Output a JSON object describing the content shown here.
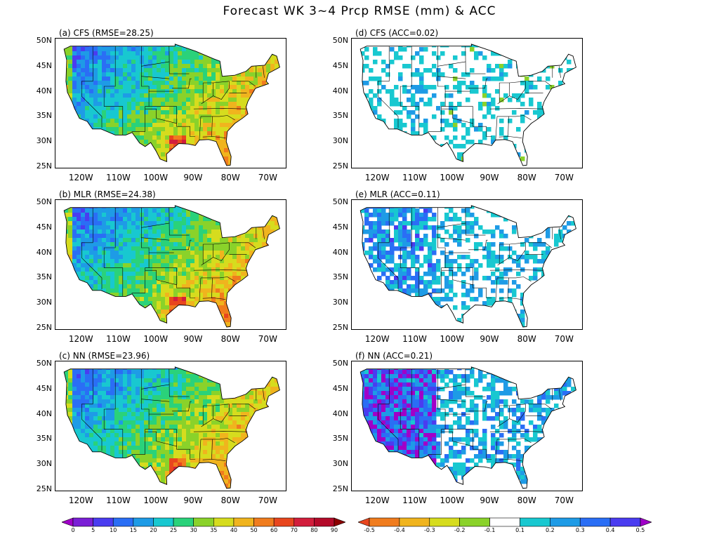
{
  "title": "Forecast WK 3~4 Prcp RMSE (mm) & ACC",
  "y_axis_labels": [
    "50N",
    "45N",
    "40N",
    "35N",
    "30N",
    "25N"
  ],
  "x_axis_labels": [
    "120W",
    "110W",
    "100W",
    "90W",
    "80W",
    "70W"
  ],
  "panels": [
    {
      "id": "a",
      "label": "(a) CFS (RMSE=28.25)",
      "kind": "rmse"
    },
    {
      "id": "d",
      "label": "(d) CFS (ACC=0.02)",
      "kind": "acc",
      "level": 0.02
    },
    {
      "id": "b",
      "label": "(b) MLR (RMSE=24.38)",
      "kind": "rmse"
    },
    {
      "id": "e",
      "label": "(e) MLR (ACC=0.11)",
      "kind": "acc",
      "level": 0.11
    },
    {
      "id": "c",
      "label": "(c) NN (RMSE=23.96)",
      "kind": "rmse"
    },
    {
      "id": "f",
      "label": "(f) NN (ACC=0.21)",
      "kind": "acc",
      "level": 0.21
    }
  ],
  "rmse_colorbar": {
    "ticks": [
      "0",
      "5",
      "10",
      "15",
      "20",
      "25",
      "30",
      "35",
      "40",
      "50",
      "60",
      "70",
      "80",
      "90"
    ],
    "colors": [
      "#a000c8",
      "#7a1fd6",
      "#4a3cf0",
      "#2a6ef5",
      "#1e9be6",
      "#18c8d0",
      "#2ad27a",
      "#8ad22a",
      "#d6dc1e",
      "#f0b41e",
      "#f07c1e",
      "#e8461e",
      "#d21e3c",
      "#b40a2a",
      "#8c0000"
    ]
  },
  "acc_colorbar": {
    "ticks": [
      "-0.5",
      "-0.4",
      "-0.3",
      "-0.2",
      "-0.1",
      "0.1",
      "0.2",
      "0.3",
      "0.4",
      "0.5"
    ],
    "colors": [
      "#e8461e",
      "#f07c1e",
      "#f0b41e",
      "#d6dc1e",
      "#8ad22a",
      "#ffffff",
      "#18c8d0",
      "#1e9be6",
      "#2a6ef5",
      "#4a3cf0",
      "#a000c8"
    ]
  }
}
